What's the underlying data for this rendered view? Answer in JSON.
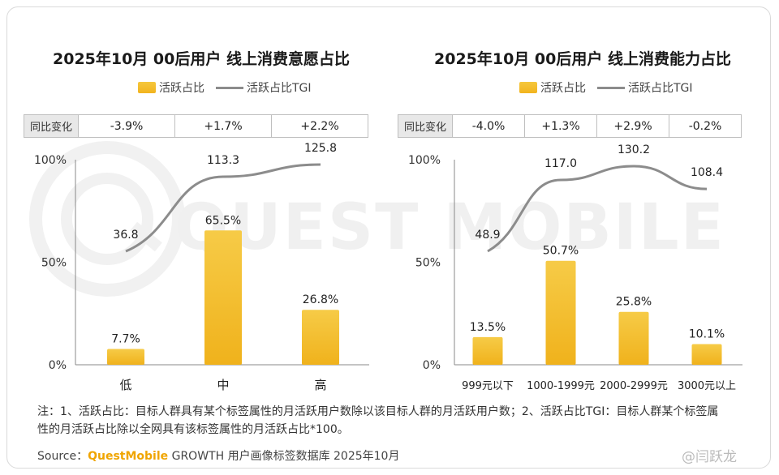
{
  "watermark": "QUEST MOBILE",
  "colors": {
    "bar_top": "#f6cb47",
    "bar_bottom": "#f0b21c",
    "line": "#8c8c8c",
    "brand": "#f0a500"
  },
  "charts": [
    {
      "title": "2025年10月 00后用户 线上消费意愿占比",
      "legend_bar": "活跃占比",
      "legend_line": "活跃占比TGI",
      "yoy_label": "同比变化",
      "yoy_values": [
        "-3.9%",
        "+1.7%",
        "+2.2%"
      ]
    },
    {
      "title": "2025年10月 00后用户 线上消费能力占比",
      "legend_bar": "活跃占比",
      "legend_line": "活跃占比TGI",
      "yoy_label": "同比变化",
      "yoy_values": [
        "-4.0%",
        "+1.3%",
        "+2.9%",
        "-0.2%"
      ]
    }
  ],
  "chart_data": [
    {
      "type": "bar",
      "title": "2025年10月 00后用户 线上消费意愿占比",
      "categories": [
        "低",
        "中",
        "高"
      ],
      "series": [
        {
          "name": "活跃占比",
          "type": "bar",
          "values": [
            7.7,
            65.5,
            26.8
          ],
          "labels": [
            "7.7%",
            "65.5%",
            "26.8%"
          ]
        },
        {
          "name": "活跃占比TGI",
          "type": "line",
          "values": [
            36.8,
            113.3,
            125.8
          ],
          "labels": [
            "36.8",
            "113.3",
            "125.8"
          ]
        }
      ],
      "yticks": [
        "100%",
        "50%",
        "0%"
      ],
      "ylim": [
        0,
        100
      ]
    },
    {
      "type": "bar",
      "title": "2025年10月 00后用户 线上消费能力占比",
      "categories": [
        "999元以下",
        "1000-1999元",
        "2000-2999元",
        "3000元以上"
      ],
      "series": [
        {
          "name": "活跃占比",
          "type": "bar",
          "values": [
            13.5,
            50.7,
            25.8,
            10.1
          ],
          "labels": [
            "13.5%",
            "50.7%",
            "25.8%",
            "10.1%"
          ]
        },
        {
          "name": "活跃占比TGI",
          "type": "line",
          "values": [
            48.9,
            117.0,
            130.2,
            108.4
          ],
          "labels": [
            "48.9",
            "117.0",
            "130.2",
            "108.4"
          ]
        }
      ],
      "yticks": [
        "100%",
        "50%",
        "0%"
      ],
      "ylim": [
        0,
        100
      ]
    }
  ],
  "footer": {
    "note": "注：1、活跃占比：目标人群具有某个标签属性的月活跃用户数除以该目标人群的月活跃用户数；2、活跃占比TGI：目标人群某个标签属性的月活跃占比除以全网具有该标签属性的月活跃占比*100。",
    "source_prefix": "Source：",
    "source_brand": "QuestMobile",
    "source_rest": " GROWTH 用户画像标签数据库 2025年10月",
    "weibo": "@闫跃龙"
  }
}
